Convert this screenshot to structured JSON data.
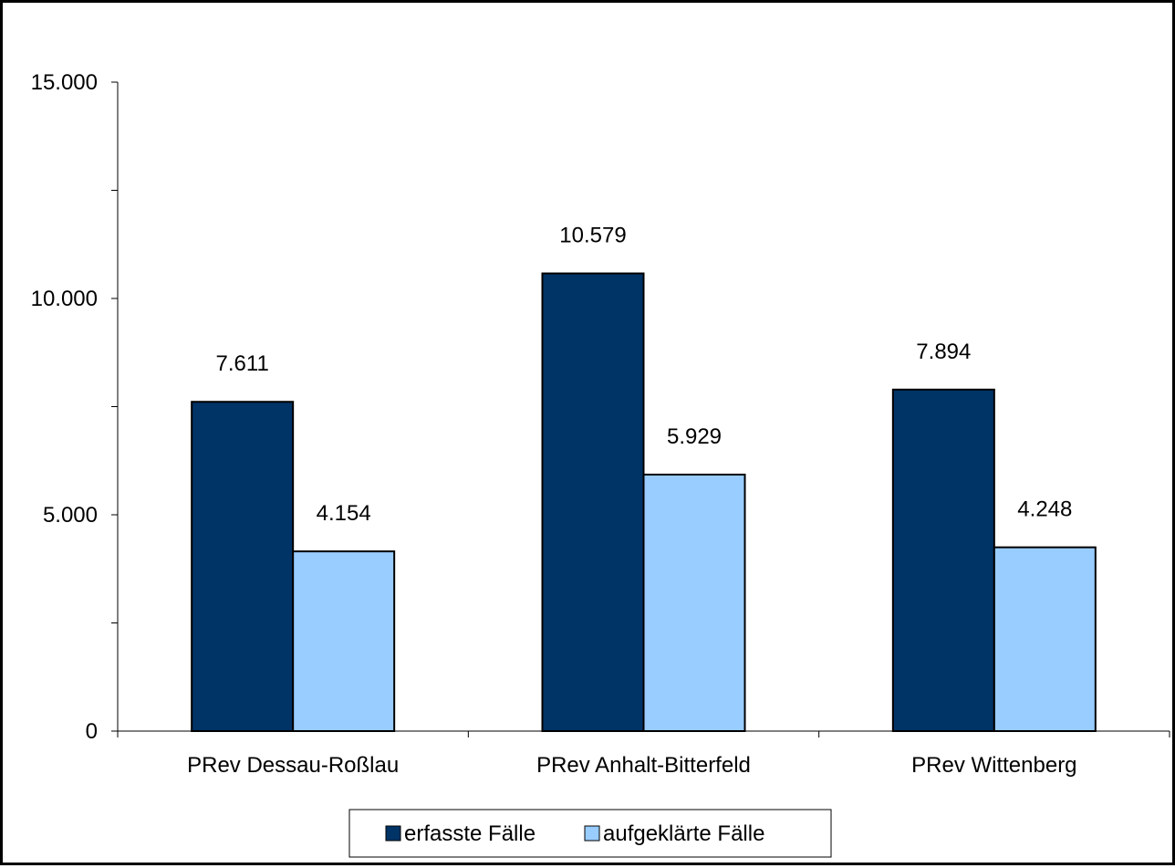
{
  "chart_data": {
    "type": "bar",
    "categories": [
      "PRev Dessau-Roßlau",
      "PRev Anhalt-Bitterfeld",
      "PRev Wittenberg"
    ],
    "series": [
      {
        "name": "erfasste Fälle",
        "values": [
          7611,
          10579,
          7894
        ],
        "labels": [
          "7.611",
          "10.579",
          "7.894"
        ],
        "color": "#003366"
      },
      {
        "name": "aufgeklärte Fälle",
        "values": [
          4154,
          5929,
          4248
        ],
        "labels": [
          "4.154",
          "5.929",
          "4.248"
        ],
        "color": "#99CCFF"
      }
    ],
    "yticks": [
      {
        "value": 0,
        "label": "0"
      },
      {
        "value": 5000,
        "label": "5.000"
      },
      {
        "value": 10000,
        "label": "10.000"
      },
      {
        "value": 15000,
        "label": "15.000"
      }
    ],
    "ylim": [
      0,
      15000
    ],
    "grid": false,
    "legend_position": "bottom"
  }
}
